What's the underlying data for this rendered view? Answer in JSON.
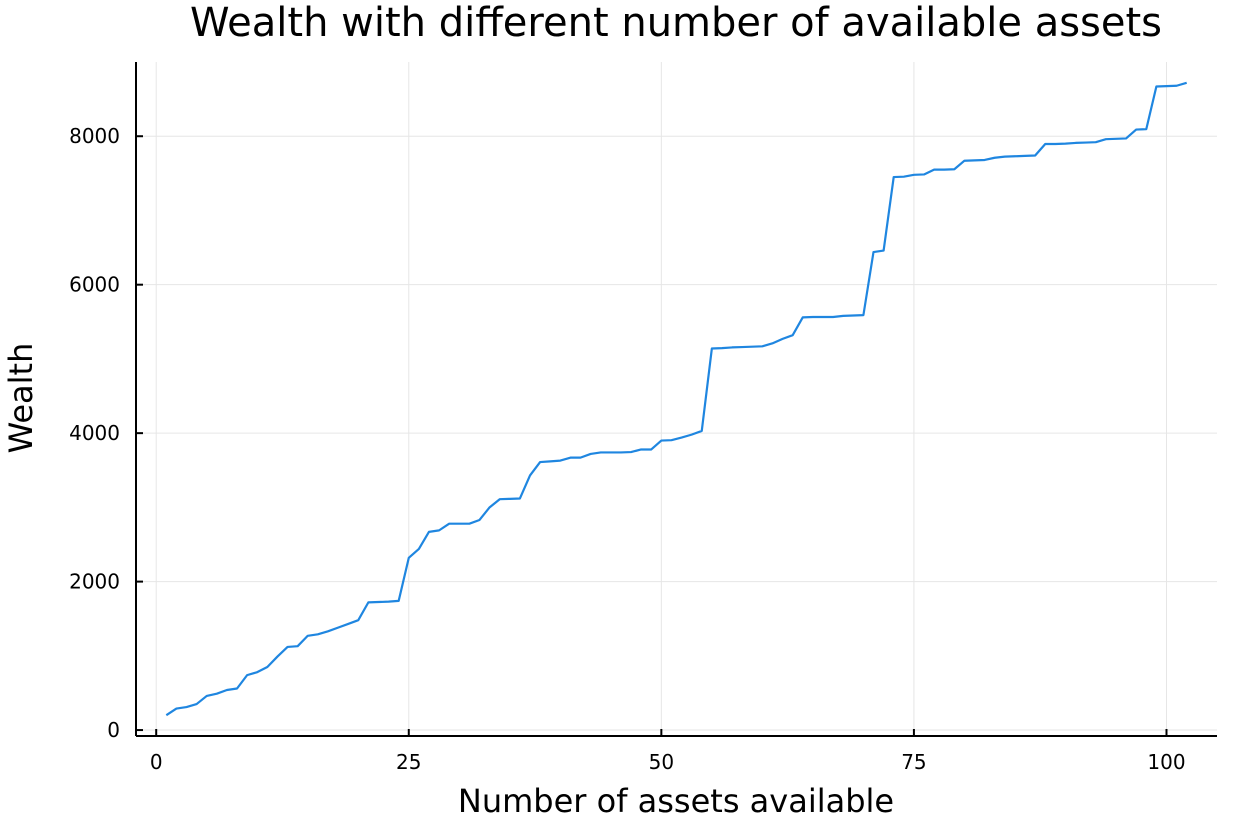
{
  "chart_data": {
    "type": "line",
    "title": "Wealth with different number of available assets",
    "xlabel": "Number of assets available",
    "ylabel": "Wealth",
    "xlim": [
      -2,
      105
    ],
    "ylim": [
      -80,
      9000
    ],
    "xticks": [
      0,
      25,
      50,
      75,
      100
    ],
    "yticks": [
      0,
      2000,
      4000,
      6000,
      8000
    ],
    "grid": true,
    "legend": "none",
    "series_color": "#1f86e0",
    "series": [
      {
        "x": [
          1,
          2,
          3,
          4,
          5,
          6,
          7,
          8,
          9,
          10,
          11,
          12,
          13,
          14,
          15,
          16,
          17,
          18,
          19,
          20,
          21,
          22,
          23,
          24,
          25,
          26,
          27,
          28,
          29,
          30,
          31,
          32,
          33,
          34,
          35,
          36,
          37,
          38,
          39,
          40,
          41,
          42,
          43,
          44,
          45,
          46,
          47,
          48,
          49,
          50,
          51,
          52,
          53,
          54,
          55,
          56,
          57,
          58,
          59,
          60,
          61,
          62,
          63,
          64,
          65,
          66,
          67,
          68,
          69,
          70,
          71,
          72,
          73,
          74,
          75,
          76,
          77,
          78,
          79,
          80,
          81,
          82,
          83,
          84,
          85,
          86,
          87,
          88,
          89,
          90,
          91,
          92,
          93,
          94,
          95,
          96,
          97,
          98,
          99,
          100,
          101,
          102
        ],
        "values": [
          200,
          290,
          310,
          350,
          460,
          490,
          540,
          560,
          740,
          780,
          850,
          990,
          1120,
          1130,
          1270,
          1290,
          1330,
          1380,
          1430,
          1480,
          1720,
          1725,
          1730,
          1740,
          2320,
          2440,
          2670,
          2690,
          2780,
          2780,
          2780,
          2830,
          3000,
          3110,
          3115,
          3120,
          3430,
          3610,
          3620,
          3630,
          3670,
          3670,
          3720,
          3740,
          3740,
          3740,
          3745,
          3780,
          3780,
          3900,
          3905,
          3940,
          3980,
          4030,
          5140,
          5145,
          5155,
          5160,
          5165,
          5170,
          5210,
          5270,
          5320,
          5560,
          5565,
          5565,
          5565,
          5580,
          5585,
          5590,
          6440,
          6460,
          7450,
          7455,
          7480,
          7485,
          7550,
          7550,
          7555,
          7670,
          7675,
          7680,
          7710,
          7725,
          7730,
          7735,
          7740,
          7895,
          7895,
          7900,
          7910,
          7915,
          7920,
          7960,
          7965,
          7970,
          8090,
          8095,
          8670,
          8675,
          8680,
          8720
        ]
      }
    ]
  }
}
